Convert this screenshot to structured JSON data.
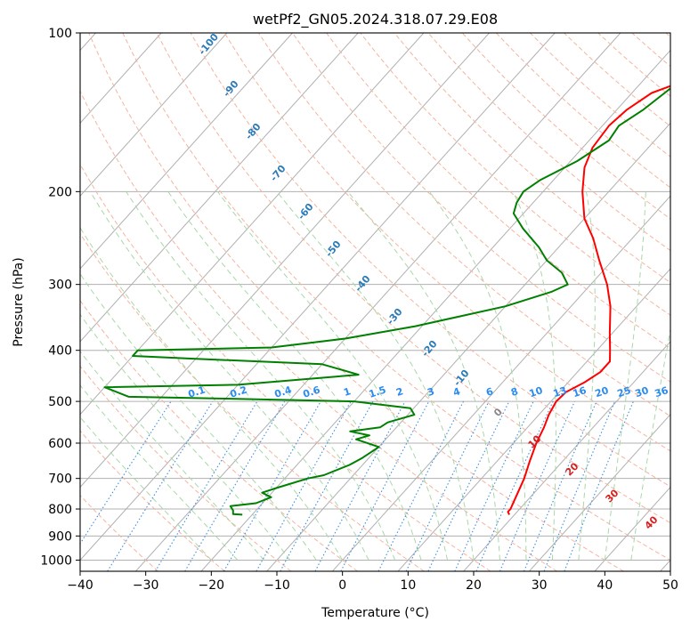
{
  "chart_data": {
    "type": "line",
    "title": "wetPf2_GN05.2024.318.07.29.E08",
    "xlabel": "Temperature (°C)",
    "ylabel": "Pressure (hPa)",
    "xlim": [
      -40,
      50
    ],
    "ylim": [
      1050,
      100
    ],
    "y_scale": "log",
    "x_ticks": [
      -40,
      -30,
      -20,
      -10,
      0,
      10,
      20,
      30,
      40,
      50
    ],
    "y_ticks": [
      100,
      200,
      300,
      400,
      500,
      600,
      700,
      800,
      900,
      1000
    ],
    "grid": true,
    "skew": true,
    "series": [
      {
        "role": "temperature",
        "color": "#ff0000",
        "points": [
          [
            19.2,
            820
          ],
          [
            18.6,
            810
          ],
          [
            18.6,
            800
          ],
          [
            17.8,
            760
          ],
          [
            16.5,
            700
          ],
          [
            15,
            650
          ],
          [
            13.5,
            600
          ],
          [
            12.5,
            560
          ],
          [
            11.5,
            530
          ],
          [
            10.8,
            500
          ],
          [
            11,
            480
          ],
          [
            12.5,
            460
          ],
          [
            13.5,
            440
          ],
          [
            13.5,
            420
          ],
          [
            12,
            400
          ],
          [
            9.5,
            370
          ],
          [
            6,
            330
          ],
          [
            2.5,
            300
          ],
          [
            -2,
            270
          ],
          [
            -6,
            245
          ],
          [
            -10,
            225
          ],
          [
            -14,
            200
          ],
          [
            -17,
            180
          ],
          [
            -18.5,
            165
          ],
          [
            -19,
            150
          ],
          [
            -18.5,
            140
          ],
          [
            -17,
            130
          ],
          [
            -13,
            122
          ],
          [
            -10,
            115
          ],
          [
            -8,
            108
          ],
          [
            -6.5,
            103
          ],
          [
            -5.5,
            100
          ]
        ]
      },
      {
        "role": "dewpoint",
        "color": "#008000",
        "points": [
          [
            -21.5,
            820
          ],
          [
            -23,
            818
          ],
          [
            -23.5,
            805
          ],
          [
            -24.5,
            790
          ],
          [
            -21,
            780
          ],
          [
            -19.5,
            760
          ],
          [
            -21.5,
            745
          ],
          [
            -20,
            730
          ],
          [
            -16.5,
            700
          ],
          [
            -14.5,
            690
          ],
          [
            -12,
            660
          ],
          [
            -11,
            640
          ],
          [
            -10,
            610
          ],
          [
            -14.5,
            590
          ],
          [
            -13,
            580
          ],
          [
            -16.5,
            570
          ],
          [
            -12.5,
            560
          ],
          [
            -12,
            548
          ],
          [
            -9,
            530
          ],
          [
            -10.5,
            515
          ],
          [
            -20,
            500
          ],
          [
            -40,
            494
          ],
          [
            -55,
            490
          ],
          [
            -60,
            470
          ],
          [
            -40,
            465
          ],
          [
            -23,
            445
          ],
          [
            -30,
            425
          ],
          [
            -50,
            415
          ],
          [
            -60,
            410
          ],
          [
            -60,
            400
          ],
          [
            -40,
            395
          ],
          [
            -30,
            380
          ],
          [
            -21,
            360
          ],
          [
            -10,
            330
          ],
          [
            -5,
            310
          ],
          [
            -3.5,
            300
          ],
          [
            -6,
            285
          ],
          [
            -10,
            270
          ],
          [
            -13,
            255
          ],
          [
            -18,
            235
          ],
          [
            -21.5,
            220
          ],
          [
            -22.5,
            210
          ],
          [
            -23,
            200
          ],
          [
            -22,
            190
          ],
          [
            -19,
            175
          ],
          [
            -17,
            160
          ],
          [
            -17.5,
            150
          ],
          [
            -16,
            140
          ],
          [
            -14.5,
            125
          ],
          [
            -12.5,
            110
          ],
          [
            -9.5,
            100
          ]
        ]
      }
    ],
    "reference_labels": {
      "dry_adiabats": [
        "-100",
        "-90",
        "-80",
        "-70",
        "-60",
        "-50",
        "-40",
        "-30",
        "-20",
        "-10"
      ],
      "mixing_ratios": [
        "0.1",
        "0.2",
        "0.4",
        "0.6",
        "1",
        "1.5",
        "2",
        "3",
        "4",
        "6",
        "8",
        "10",
        "13",
        "16",
        "20",
        "25",
        "30",
        "36"
      ],
      "moist_adiabats": [
        "0",
        "10",
        "20",
        "30",
        "40"
      ]
    }
  }
}
